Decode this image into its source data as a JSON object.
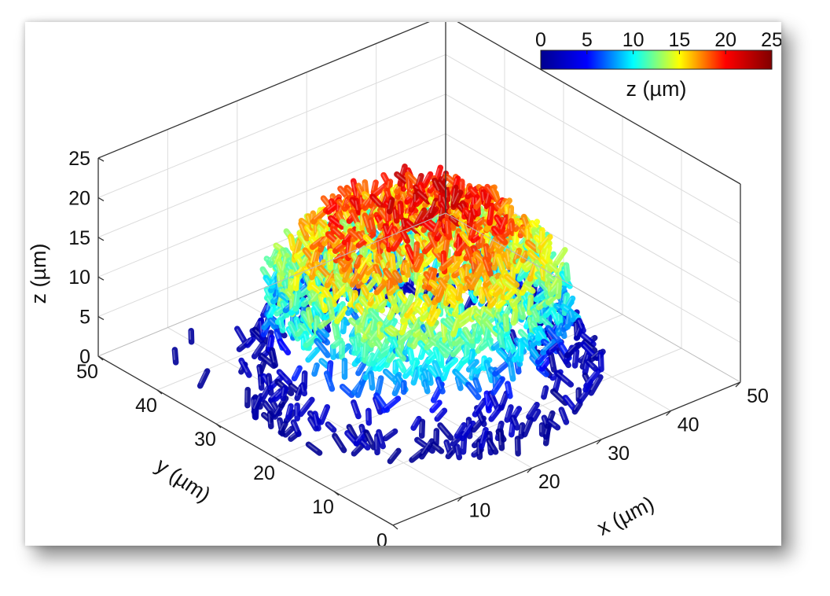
{
  "chart_data": {
    "type": "scatter",
    "subtype": "3d-rod-cloud",
    "title": "",
    "xlabel": "x (µm)",
    "ylabel": "y (µm)",
    "zlabel": "z (µm)",
    "xlim": [
      0,
      50
    ],
    "ylim": [
      0,
      50
    ],
    "zlim": [
      0,
      25
    ],
    "x_ticks": [
      "10",
      "20",
      "30",
      "40",
      "50"
    ],
    "y_ticks": [
      "0",
      "10",
      "20",
      "30",
      "40",
      "50"
    ],
    "z_ticks": [
      "0",
      "5",
      "10",
      "15",
      "20",
      "25"
    ],
    "grid": true,
    "colorbar": {
      "label": "z (µm)",
      "ticks": [
        "0",
        "5",
        "10",
        "15",
        "20",
        "25"
      ],
      "range": [
        0,
        25
      ],
      "colormap": "jet",
      "placement": "top-right"
    },
    "colormap_stops": [
      "#00008f",
      "#0000ff",
      "#00ffff",
      "#ffff00",
      "#ff0000",
      "#800000"
    ],
    "cluster": {
      "center_x": 24,
      "center_y": 24,
      "base_radius": 17,
      "max_height": 23
    }
  }
}
